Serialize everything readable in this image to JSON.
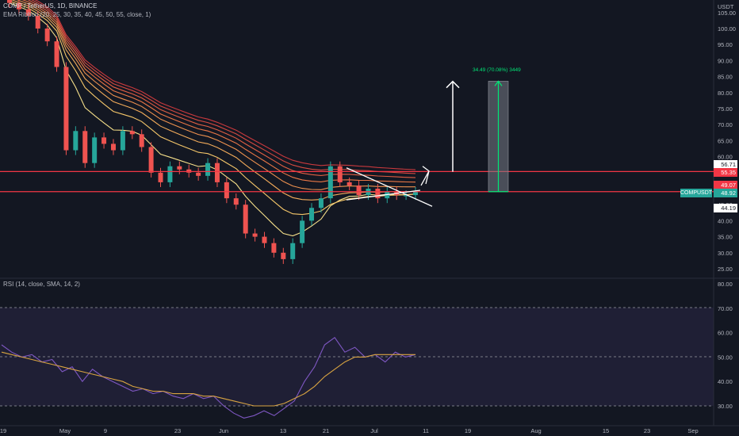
{
  "header": {
    "symbol_line": "COMP / TetherUS, 1D, BINANCE",
    "indicator_line": "EMA Ribbon (20, 25, 30, 35, 40, 45, 50, 55, close, 1)",
    "rsi_line": "RSI (14, close, SMA, 14, 2)"
  },
  "axis": {
    "currency": "USDT",
    "price_ticks": [
      "105.00",
      "100.00",
      "95.00",
      "90.00",
      "85.00",
      "80.00",
      "75.00",
      "70.00",
      "65.00",
      "60.00",
      "55.00",
      "50.00",
      "45.00",
      "40.00",
      "35.00",
      "30.00",
      "25.00"
    ],
    "rsi_ticks": [
      "80.00",
      "70.00",
      "60.00",
      "50.00",
      "40.00",
      "30.00"
    ],
    "x_ticks": [
      "19",
      "May",
      "9",
      "23",
      "Jun",
      "13",
      "21",
      "Jul",
      "11",
      "19",
      "Aug",
      "15",
      "23",
      "Sep"
    ]
  },
  "tags": {
    "t1": "56.71",
    "t2": "55.35",
    "t3": "49.07",
    "t4_label": "COMPUSDT",
    "t4": "48.92",
    "t5": "44.19"
  },
  "measure_label": "34.49 (70.08%) 3449",
  "colors": {
    "background": "#131722",
    "up": "#26a69a",
    "down": "#ef5350",
    "support_resistance": "#f23645",
    "rsi_line": "#7e57c2",
    "rsi_ma": "#d9a441",
    "measure": "#00e676"
  },
  "chart_data": [
    {
      "type": "candlestick",
      "title": "COMP / TetherUS, 1D, BINANCE",
      "x": [
        "Apr 19",
        "May 1",
        "May 9",
        "May 23",
        "Jun 1",
        "Jun 13",
        "Jun 21",
        "Jul 1",
        "Jul 11",
        "Jul 19",
        "Aug 1",
        "Aug 15",
        "Aug 23",
        "Sep 1"
      ],
      "ylim": [
        22,
        110
      ],
      "y_unit": "USDT",
      "last_price": 48.92,
      "horizontal_levels": [
        55.35,
        49.07
      ],
      "measure": {
        "from": 49.07,
        "to": 83.56,
        "change": 34.49,
        "percent": 70.08
      },
      "ohlc_close_series": [
        108,
        106,
        104,
        100,
        96,
        88,
        62,
        68,
        58,
        66,
        64,
        62,
        68,
        67,
        63,
        55,
        52,
        57,
        56,
        55,
        54,
        58,
        52,
        47,
        45,
        36,
        35,
        33,
        30,
        28,
        33,
        40,
        44,
        47,
        57,
        52,
        51,
        48,
        50,
        47,
        49,
        48,
        48,
        49
      ]
    },
    {
      "type": "line",
      "title": "RSI (14, close, SMA, 14, 2)",
      "ylim": [
        25,
        85
      ],
      "levels": [
        70,
        50,
        30
      ],
      "series": [
        {
          "values": [
            55,
            52,
            50,
            51,
            48,
            49,
            44,
            46,
            40,
            45,
            42,
            40,
            38,
            36,
            37,
            35,
            36,
            34,
            33,
            35,
            33,
            34,
            30,
            27,
            25,
            26,
            28,
            26,
            29,
            32,
            40,
            46,
            55,
            58,
            52,
            54,
            50,
            51,
            48,
            52,
            50,
            51
          ]
        },
        {
          "values": [
            52,
            51,
            50,
            49,
            48,
            47,
            46,
            45,
            44,
            43,
            42,
            41,
            40,
            38,
            37,
            36,
            36,
            35,
            35,
            35,
            34,
            34,
            33,
            32,
            31,
            30,
            30,
            30,
            31,
            33,
            35,
            38,
            42,
            45,
            48,
            50,
            50,
            51,
            51,
            51,
            51,
            51
          ]
        }
      ]
    }
  ]
}
